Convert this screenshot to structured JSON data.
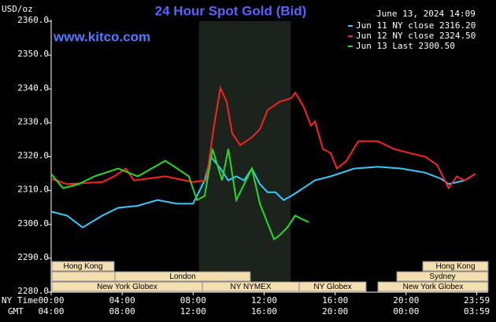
{
  "chart_data": {
    "type": "line",
    "title": "24 Hour Spot Gold (Bid)",
    "watermark": "www.kitco.com",
    "timestamp": "June 13, 2024 14:09",
    "y_label": "USD/oz",
    "x_label": "NY Time",
    "x2_label": "GMT",
    "ylim": [
      2280,
      2360
    ],
    "yticks": [
      {
        "value": 2280,
        "label": "2280.0"
      },
      {
        "value": 2290,
        "label": "2290.0"
      },
      {
        "value": 2300,
        "label": "2300.0"
      },
      {
        "value": 2310,
        "label": "2310.0"
      },
      {
        "value": 2320,
        "label": "2320.0"
      },
      {
        "value": 2330,
        "label": "2330.0"
      },
      {
        "value": 2340,
        "label": "2340.0"
      },
      {
        "value": 2350,
        "label": "2350.0"
      },
      {
        "value": 2360,
        "label": "2360.0"
      }
    ],
    "xlim": [
      0,
      24
    ],
    "xticks": [
      {
        "value": 0,
        "label": "00:00"
      },
      {
        "value": 4,
        "label": "04:00"
      },
      {
        "value": 8,
        "label": "08:00"
      },
      {
        "value": 12,
        "label": "12:00"
      },
      {
        "value": 16,
        "label": "16:00"
      },
      {
        "value": 20,
        "label": "20:00"
      },
      {
        "value": 23.98,
        "label": "23:59"
      }
    ],
    "x2ticks": [
      "04:00",
      "08:00",
      "12:00",
      "16:00",
      "20:00",
      "00:00",
      "03:59"
    ],
    "sessions": [
      "Hong Kong",
      "London",
      "New York Globex",
      "NY NYMEX",
      "NY Globex",
      "Hong Kong",
      "Sydney",
      "New York Globex"
    ],
    "series": [
      {
        "name": "Jun 11 NY close 2316.20",
        "color": "#33ccff",
        "x": [
          0,
          0.89,
          1.77,
          2.88,
          3.77,
          4.88,
          5.99,
          7.1,
          7.99,
          8.65,
          9.0,
          9.54,
          9.98,
          10.43,
          10.87,
          11.31,
          11.76,
          12.2,
          12.64,
          13.09,
          13.53,
          14.2,
          14.86,
          15.75,
          17.08,
          18.41,
          19.74,
          21.07,
          21.96,
          22.4,
          23.29,
          23.9
        ],
        "values": [
          2303.8,
          2302.6,
          2299.1,
          2302.6,
          2304.9,
          2305.5,
          2307.2,
          2306.1,
          2306.1,
          2313.0,
          2320.0,
          2316.5,
          2313.0,
          2314.2,
          2313.0,
          2316.5,
          2311.9,
          2309.5,
          2309.5,
          2307.2,
          2308.4,
          2310.7,
          2313.0,
          2314.2,
          2316.5,
          2317.0,
          2316.5,
          2315.3,
          2313.5,
          2311.9,
          2313.0,
          2314.9
        ]
      },
      {
        "name": "Jun 12 NY close 2324.50",
        "color": "#ff2020",
        "x": [
          0,
          0.89,
          2.88,
          3.55,
          4.21,
          4.66,
          6.43,
          7.99,
          8.74,
          9.18,
          9.54,
          9.89,
          10.2,
          10.65,
          11.31,
          11.76,
          12.2,
          12.87,
          13.53,
          13.75,
          14.2,
          14.64,
          14.86,
          15.31,
          15.75,
          16.1,
          16.64,
          17.3,
          18.41,
          19.3,
          20.19,
          21.07,
          21.74,
          22.4,
          22.85,
          23.29,
          23.9
        ],
        "values": [
          2313.5,
          2311.9,
          2312.5,
          2314.2,
          2316.5,
          2313.0,
          2314.2,
          2312.5,
          2313.0,
          2329.2,
          2340.3,
          2336.2,
          2326.9,
          2323.4,
          2325.7,
          2328.1,
          2333.8,
          2336.2,
          2337.3,
          2338.9,
          2335.0,
          2329.2,
          2330.4,
          2322.3,
          2321.1,
          2316.5,
          2318.8,
          2324.6,
          2324.6,
          2322.3,
          2321.1,
          2320.0,
          2317.6,
          2310.7,
          2314.2,
          2313.0,
          2314.9
        ]
      },
      {
        "name": "Jun 13 Last 2300.50",
        "color": "#22dd22",
        "x": [
          0,
          0.67,
          1.55,
          2.44,
          3.77,
          4.88,
          6.43,
          7.1,
          7.76,
          8.21,
          8.65,
          9.09,
          9.63,
          9.98,
          10.43,
          11.09,
          11.31,
          11.76,
          12.2,
          12.56,
          12.87,
          13.31,
          13.75,
          14.2,
          14.51
        ],
        "values": [
          2314.9,
          2310.7,
          2311.9,
          2314.2,
          2316.5,
          2314.2,
          2318.8,
          2316.5,
          2314.2,
          2307.2,
          2308.4,
          2322.3,
          2313.0,
          2322.3,
          2307.2,
          2314.2,
          2316.5,
          2306.1,
          2300.3,
          2295.6,
          2296.8,
          2299.1,
          2302.6,
          2301.4,
          2300.7
        ]
      }
    ]
  }
}
